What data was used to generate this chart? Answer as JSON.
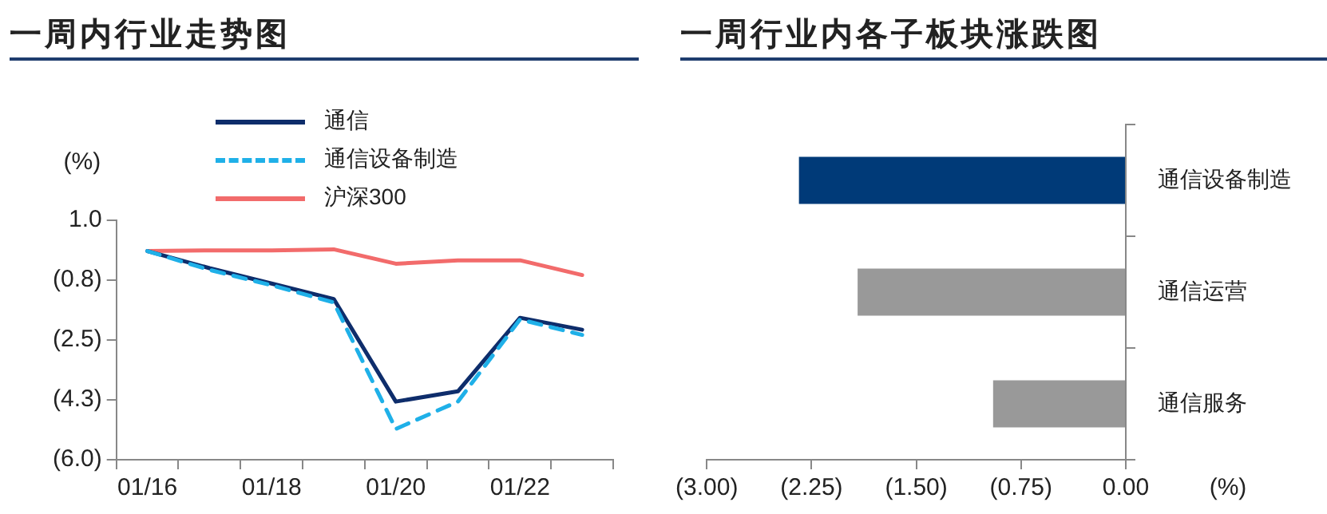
{
  "chart_data": [
    {
      "type": "line",
      "title": "一周内行业走势图",
      "ylabel": "(%)",
      "legend": "top left",
      "categories": [
        "01/16",
        null,
        "01/18",
        null,
        "01/20",
        null,
        "01/22",
        null
      ],
      "series": [
        {
          "name": "通信",
          "color": "#0e2d6b",
          "values": [
            0.1,
            -0.4,
            -0.85,
            -1.3,
            -4.3,
            -4.0,
            -1.85,
            -2.2
          ]
        },
        {
          "name": "通信设备制造",
          "color": "#1fb0e8",
          "line_style": "dashed",
          "values": [
            0.1,
            -0.45,
            -0.9,
            -1.4,
            -5.1,
            -4.3,
            -1.9,
            -2.35
          ]
        },
        {
          "name": "沪深300",
          "color": "#f26b6b",
          "values": [
            0.1,
            0.12,
            0.12,
            0.15,
            -0.27,
            -0.17,
            -0.17,
            -0.6
          ]
        }
      ],
      "ylim": [
        -6,
        1
      ],
      "yticks": [
        {
          "value": 1,
          "label": "1.0"
        },
        {
          "value": -0.75,
          "label": "(0.8)"
        },
        {
          "value": -2.5,
          "label": "(2.5)"
        },
        {
          "value": -4.25,
          "label": "(4.3)"
        },
        {
          "value": -6,
          "label": "(6.0)"
        }
      ],
      "marker": "none"
    },
    {
      "type": "bar",
      "title": "一周行业内各子板块涨跌图",
      "xlabel": "(%)",
      "orientation": "horizontal",
      "categories": [
        "通信设备制造",
        "通信运营",
        "通信服务"
      ],
      "values": [
        -2.34,
        -1.92,
        -0.95
      ],
      "colors": [
        "#003a78",
        "#999999",
        "#999999"
      ],
      "xlim": [
        -3,
        0
      ],
      "xticks": [
        {
          "value": -3,
          "label": "(3.00)"
        },
        {
          "value": -2.25,
          "label": "(2.25)"
        },
        {
          "value": -1.5,
          "label": "(1.50)"
        },
        {
          "value": -0.75,
          "label": "(0.75)"
        },
        {
          "value": 0,
          "label": "0.00"
        }
      ]
    }
  ]
}
